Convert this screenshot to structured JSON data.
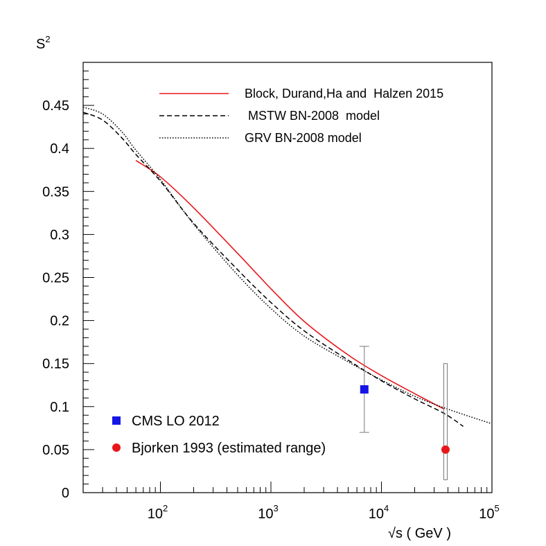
{
  "chart_data": {
    "type": "line",
    "ylabel": "S",
    "ylabel_sup": "2",
    "xlabel": "√s ( GeV )",
    "x_scale": "log",
    "xlim": [
      20,
      100000
    ],
    "ylim": [
      0,
      0.5
    ],
    "x_tick_labels": [
      {
        "value": 100,
        "base": "10",
        "exp": "2"
      },
      {
        "value": 1000,
        "base": "10",
        "exp": "3"
      },
      {
        "value": 10000,
        "base": "10",
        "exp": "4"
      },
      {
        "value": 100000,
        "base": "10",
        "exp": "5"
      }
    ],
    "y_ticks": [
      0,
      0.05,
      0.1,
      0.15,
      0.2,
      0.25,
      0.3,
      0.35,
      0.4,
      0.45
    ],
    "y_tick_labels": [
      "0",
      "0.05",
      "0.1",
      "0.15",
      "0.2",
      "0.25",
      "0.3",
      "0.35",
      "0.4",
      "0.45"
    ],
    "legend_placement": "top-right",
    "series": [
      {
        "name": "Block, Durand,Ha and  Halzen 2015",
        "color": "#e8161b",
        "style": "solid",
        "points": [
          [
            60,
            0.386
          ],
          [
            100,
            0.367
          ],
          [
            200,
            0.331
          ],
          [
            500,
            0.278
          ],
          [
            1000,
            0.237
          ],
          [
            2000,
            0.199
          ],
          [
            5000,
            0.16
          ],
          [
            10000,
            0.136
          ],
          [
            20000,
            0.115
          ],
          [
            37000,
            0.097
          ]
        ]
      },
      {
        "name": " MSTW BN-2008  model",
        "color": "#000000",
        "style": "dashed",
        "points": [
          [
            20,
            0.442
          ],
          [
            30,
            0.433
          ],
          [
            45,
            0.412
          ],
          [
            60,
            0.393
          ],
          [
            100,
            0.362
          ],
          [
            200,
            0.313
          ],
          [
            500,
            0.259
          ],
          [
            1000,
            0.221
          ],
          [
            2000,
            0.188
          ],
          [
            5000,
            0.154
          ],
          [
            10000,
            0.13
          ],
          [
            20000,
            0.109
          ],
          [
            37000,
            0.092
          ],
          [
            55000,
            0.077
          ]
        ]
      },
      {
        "name": "GRV BN-2008 model",
        "color": "#000000",
        "style": "dotted",
        "points": [
          [
            20,
            0.448
          ],
          [
            30,
            0.44
          ],
          [
            45,
            0.419
          ],
          [
            60,
            0.398
          ],
          [
            100,
            0.364
          ],
          [
            200,
            0.312
          ],
          [
            500,
            0.253
          ],
          [
            1000,
            0.214
          ],
          [
            2000,
            0.182
          ],
          [
            5000,
            0.152
          ],
          [
            10000,
            0.131
          ],
          [
            20000,
            0.112
          ],
          [
            40000,
            0.097
          ],
          [
            100000,
            0.08
          ]
        ]
      }
    ],
    "points": [
      {
        "name": "CMS LO 2012",
        "color": "#1515e6",
        "marker": "square",
        "x": 7000,
        "y": 0.12,
        "error_low": 0.07,
        "error_high": 0.17
      },
      {
        "name": "Bjorken 1993 (estimated range)",
        "color": "#e8161b",
        "marker": "circle",
        "x": 38000,
        "y": 0.05,
        "range_low": 0.015,
        "range_high": 0.15
      }
    ]
  }
}
